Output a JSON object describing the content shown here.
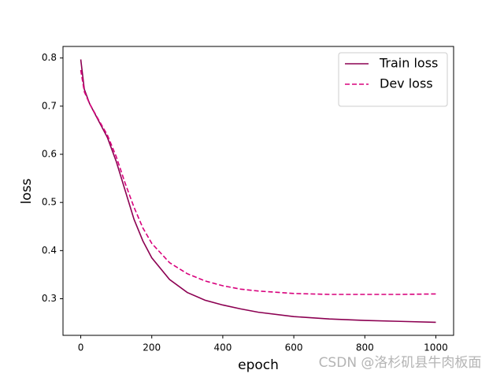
{
  "chart_data": {
    "type": "line",
    "xlabel": "epoch",
    "ylabel": "loss",
    "x": [
      0,
      10,
      25,
      50,
      75,
      100,
      125,
      150,
      175,
      200,
      250,
      300,
      350,
      400,
      450,
      500,
      600,
      700,
      800,
      900,
      1000
    ],
    "series": [
      {
        "name": "Train loss",
        "color": "#8c0052",
        "dash": false,
        "values": [
          0.797,
          0.735,
          0.705,
          0.67,
          0.635,
          0.585,
          0.525,
          0.465,
          0.42,
          0.385,
          0.34,
          0.313,
          0.297,
          0.287,
          0.279,
          0.272,
          0.263,
          0.258,
          0.255,
          0.253,
          0.251
        ]
      },
      {
        "name": "Dev loss",
        "color": "#d8007c",
        "dash": true,
        "values": [
          0.775,
          0.73,
          0.705,
          0.672,
          0.64,
          0.595,
          0.54,
          0.49,
          0.447,
          0.415,
          0.375,
          0.352,
          0.337,
          0.327,
          0.32,
          0.316,
          0.311,
          0.309,
          0.309,
          0.309,
          0.31
        ]
      }
    ],
    "xlim": [
      -50,
      1050
    ],
    "ylim": [
      0.224,
      0.824
    ],
    "xticks": [
      0,
      200,
      400,
      600,
      800,
      1000
    ],
    "yticks": [
      0.3,
      0.4,
      0.5,
      0.6,
      0.7,
      0.8
    ],
    "legend": "upper right"
  },
  "watermark": "CSDN @洛杉矶县牛肉板面"
}
